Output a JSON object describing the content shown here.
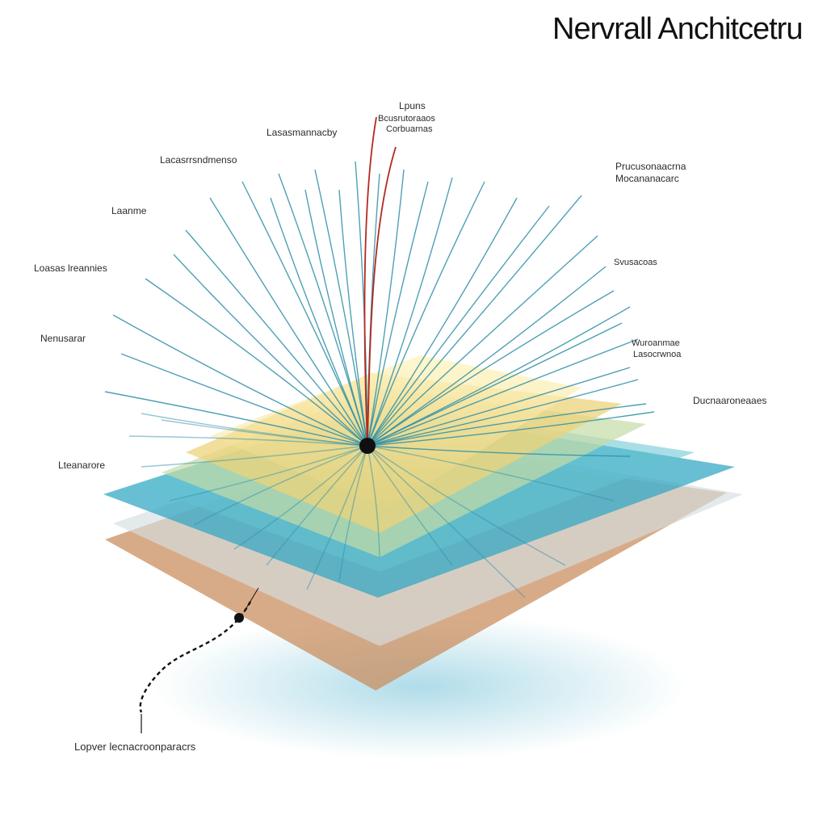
{
  "title": "Nervrall Anchitcetru",
  "top_label": {
    "line1": "Lpuns",
    "line2": "Bcusrutoraaos",
    "line3": "Corbuarnas"
  },
  "labels": {
    "upper_left_a": "Lasasmannacby",
    "upper_left_b": "Lacasrrsndmenso",
    "left_a": "Laanme",
    "left_b": "Loasas lreannies",
    "left_c": "Nenusarar",
    "left_d": "Lteanarore",
    "bottom": "Lopver lecnacroonparacrs",
    "right_a": "Prucusonaacrna",
    "right_b": "Mocananacarc",
    "right_c": "Ducnaaroneaaes",
    "right_d": "Svusacoas",
    "right_e": "Wuroanmae",
    "right_f": "Lasocrwnoa"
  },
  "layers": [
    {
      "name": "base-layer",
      "color": "#c98a5a"
    },
    {
      "name": "pale-layer",
      "color": "#cfd9dd"
    },
    {
      "name": "teal-layer",
      "color": "#3aa9c4"
    },
    {
      "name": "teal-layer-2",
      "color": "#5cc0cf"
    },
    {
      "name": "green-layer",
      "color": "#c2d9a8"
    },
    {
      "name": "yellow-layer",
      "color": "#ecd37a"
    },
    {
      "name": "yellow-layer-top",
      "color": "#f3dc8c"
    }
  ],
  "colors": {
    "ray": "#2f8fa8",
    "accent_ray": "#b22a20",
    "hub": "#101010"
  }
}
